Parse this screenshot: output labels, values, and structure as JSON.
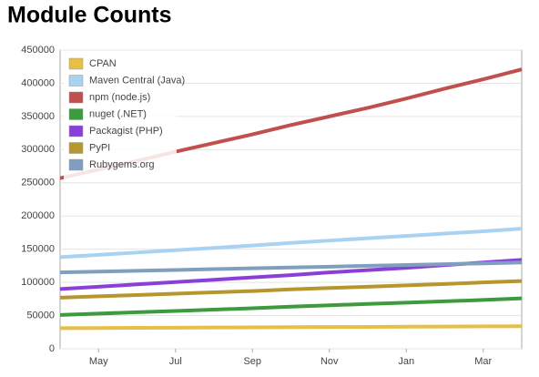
{
  "chart_data": {
    "type": "line",
    "title": "Module Counts",
    "categories": [
      null,
      "May",
      null,
      "Jul",
      null,
      "Sep",
      null,
      "Nov",
      null,
      "Jan",
      null,
      "Mar",
      null
    ],
    "series": [
      {
        "name": "CPAN",
        "color": "#e6bf45",
        "values": [
          31000,
          31200,
          31500,
          31700,
          32000,
          32200,
          32500,
          32700,
          33000,
          33200,
          33500,
          33700,
          34000
        ]
      },
      {
        "name": "Maven Central (Java)",
        "color": "#a9d1f0",
        "values": [
          138000,
          141500,
          145000,
          148500,
          152000,
          155500,
          159500,
          163000,
          166500,
          170000,
          173500,
          177000,
          181000
        ]
      },
      {
        "name": "npm (node.js)",
        "color": "#c0504d",
        "values": [
          257000,
          270000,
          283000,
          297000,
          310000,
          323000,
          337000,
          350000,
          363000,
          377000,
          392000,
          406000,
          421000
        ]
      },
      {
        "name": "nuget (.NET)",
        "color": "#3d9a3d",
        "values": [
          51000,
          53000,
          55000,
          57000,
          59000,
          61000,
          63500,
          65500,
          67500,
          69500,
          71500,
          73500,
          76000
        ]
      },
      {
        "name": "Packagist (PHP)",
        "color": "#8b3fd9",
        "values": [
          90000,
          93500,
          97000,
          100500,
          104000,
          107500,
          111000,
          115000,
          118500,
          122000,
          126000,
          130000,
          134000
        ]
      },
      {
        "name": "PyPI",
        "color": "#b8962e",
        "values": [
          77000,
          79000,
          81000,
          83000,
          85000,
          87000,
          89500,
          91500,
          93500,
          95500,
          97500,
          100000,
          102000
        ]
      },
      {
        "name": "Rubygems.org",
        "color": "#809fbf",
        "values": [
          115000,
          116200,
          117500,
          118700,
          120000,
          121200,
          122500,
          123700,
          125000,
          126200,
          127500,
          128700,
          130000
        ]
      }
    ],
    "ylim": [
      0,
      450000
    ],
    "yticks": [
      0,
      50000,
      100000,
      150000,
      200000,
      250000,
      300000,
      350000,
      400000,
      450000
    ],
    "grid": true,
    "legend": "top-left"
  }
}
